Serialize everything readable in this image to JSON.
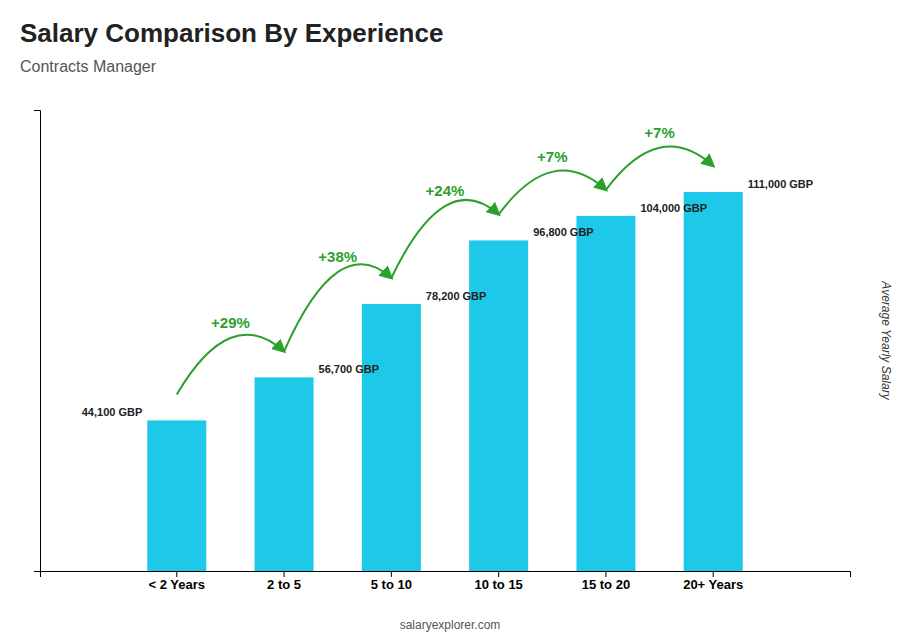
{
  "chart_data": {
    "type": "bar",
    "title": "Salary Comparison By Experience",
    "subtitle": "Contracts Manager",
    "ylabel": "Average Yearly Salary",
    "footer": "salaryexplorer.com",
    "categories": [
      "< 2 Years",
      "2 to 5",
      "5 to 10",
      "10 to 15",
      "15 to 20",
      "20+ Years"
    ],
    "values": [
      44100,
      56700,
      78200,
      96800,
      104000,
      111000
    ],
    "value_labels": [
      "44,100 GBP",
      "56,700 GBP",
      "78,200 GBP",
      "96,800 GBP",
      "104,000 GBP",
      "111,000 GBP"
    ],
    "data_labels": true,
    "annotations": [
      "+29%",
      "+38%",
      "+24%",
      "+7%",
      "+7%"
    ],
    "color": "#1EC8E8",
    "ylim": [
      0,
      135000
    ],
    "yticks": [],
    "tick_labels": "x"
  }
}
